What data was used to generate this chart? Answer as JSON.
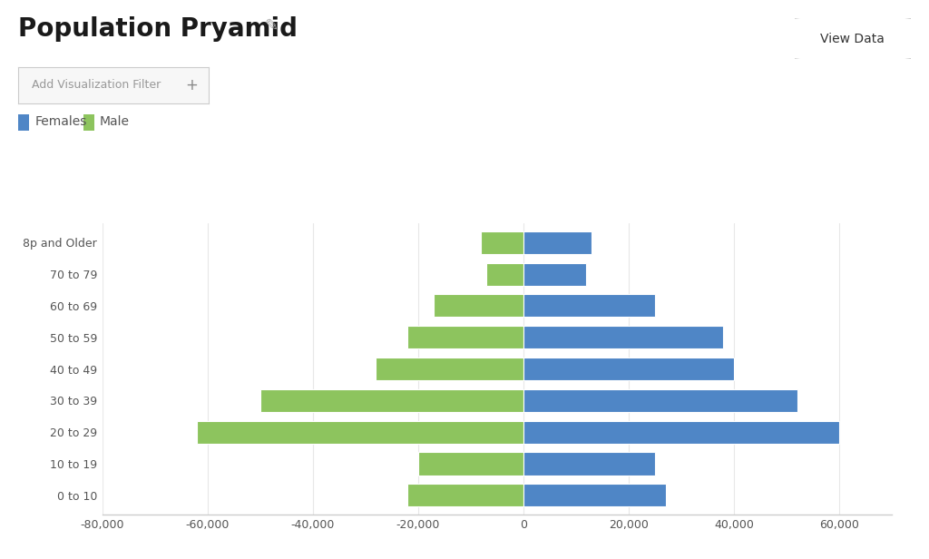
{
  "title": "Population Pryamid",
  "subtitle": "Add Visualization Filter",
  "age_groups": [
    "0 to 10",
    "10 to 19",
    "20 to 29",
    "30 to 39",
    "40 to 49",
    "50 to 59",
    "60 to 69",
    "70 to 79",
    "8p and Older"
  ],
  "female_values": [
    27000,
    25000,
    60000,
    52000,
    40000,
    38000,
    25000,
    12000,
    13000
  ],
  "male_values": [
    -22000,
    -20000,
    -62000,
    -50000,
    -28000,
    -22000,
    -17000,
    -7000,
    -8000
  ],
  "female_color": "#4f86c6",
  "male_color": "#8dc45e",
  "background_color": "#ffffff",
  "xlim": [
    -80000,
    70000
  ],
  "xticks": [
    -80000,
    -60000,
    -40000,
    -20000,
    0,
    20000,
    40000,
    60000
  ],
  "xtick_labels": [
    "-80,000",
    "-60,000",
    "-40,000",
    "-20,000",
    "0",
    "20,000",
    "40,000",
    "60,000"
  ],
  "female_label": "Females",
  "male_label": "Male",
  "bar_height": 0.72,
  "grid_color": "#e8e8e8",
  "axis_color": "#cccccc",
  "text_color": "#555555",
  "title_fontsize": 20,
  "legend_fontsize": 10,
  "tick_fontsize": 9,
  "ytick_fontsize": 9
}
